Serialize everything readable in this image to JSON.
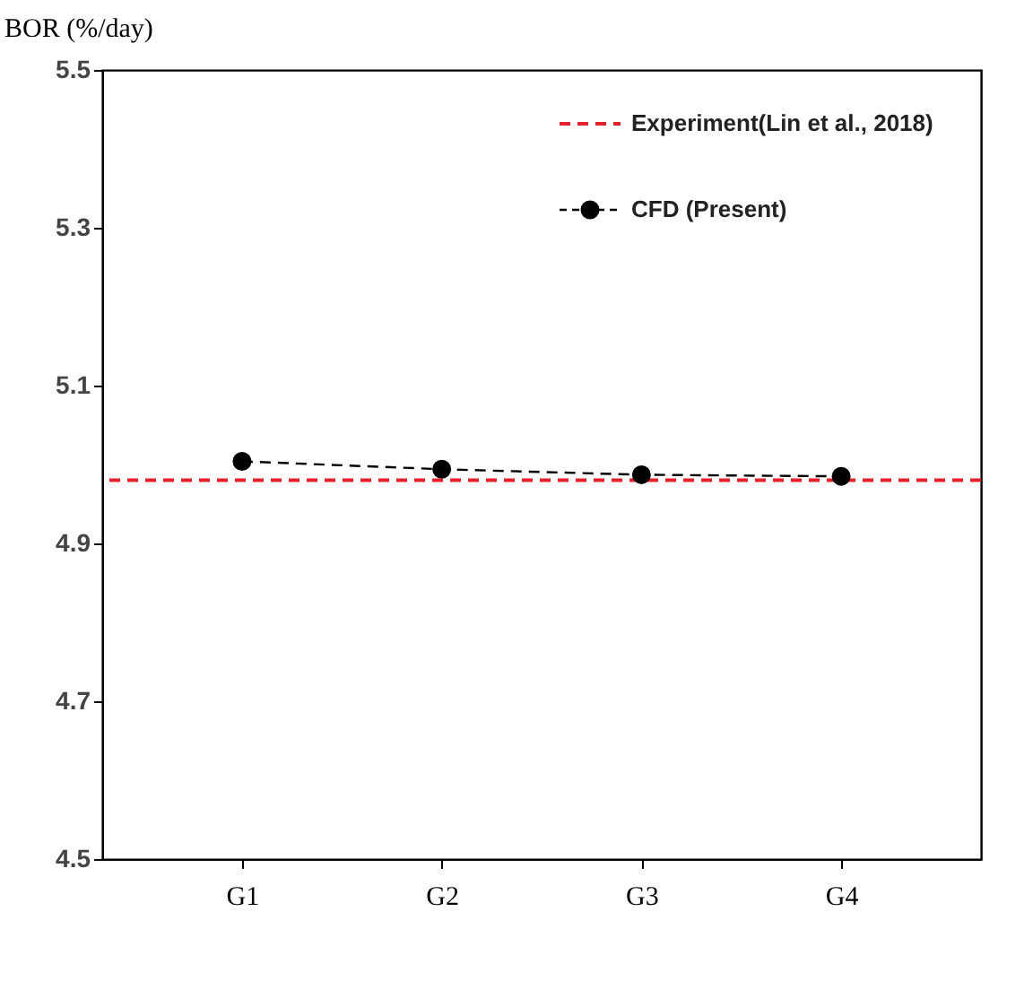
{
  "chart_data": {
    "type": "line",
    "ylabel": "BOR (%/day)",
    "categories": [
      "G1",
      "G2",
      "G3",
      "G4"
    ],
    "ylim": [
      4.5,
      5.5
    ],
    "yticks": [
      4.5,
      4.7,
      4.9,
      5.1,
      5.3,
      5.5
    ],
    "series": [
      {
        "name": "CFD (Present)",
        "color": "#000000",
        "values": [
          5.004,
          4.994,
          4.987,
          4.985
        ],
        "marker": "circle",
        "line_style": "dashed"
      }
    ],
    "ref_lines": [
      {
        "axis": "y",
        "value": 4.98,
        "label": "Experiment(Lin et al., 2018)",
        "color": "#e8202a",
        "line_style": "dashed"
      }
    ],
    "legend": "top right",
    "grid": false
  }
}
